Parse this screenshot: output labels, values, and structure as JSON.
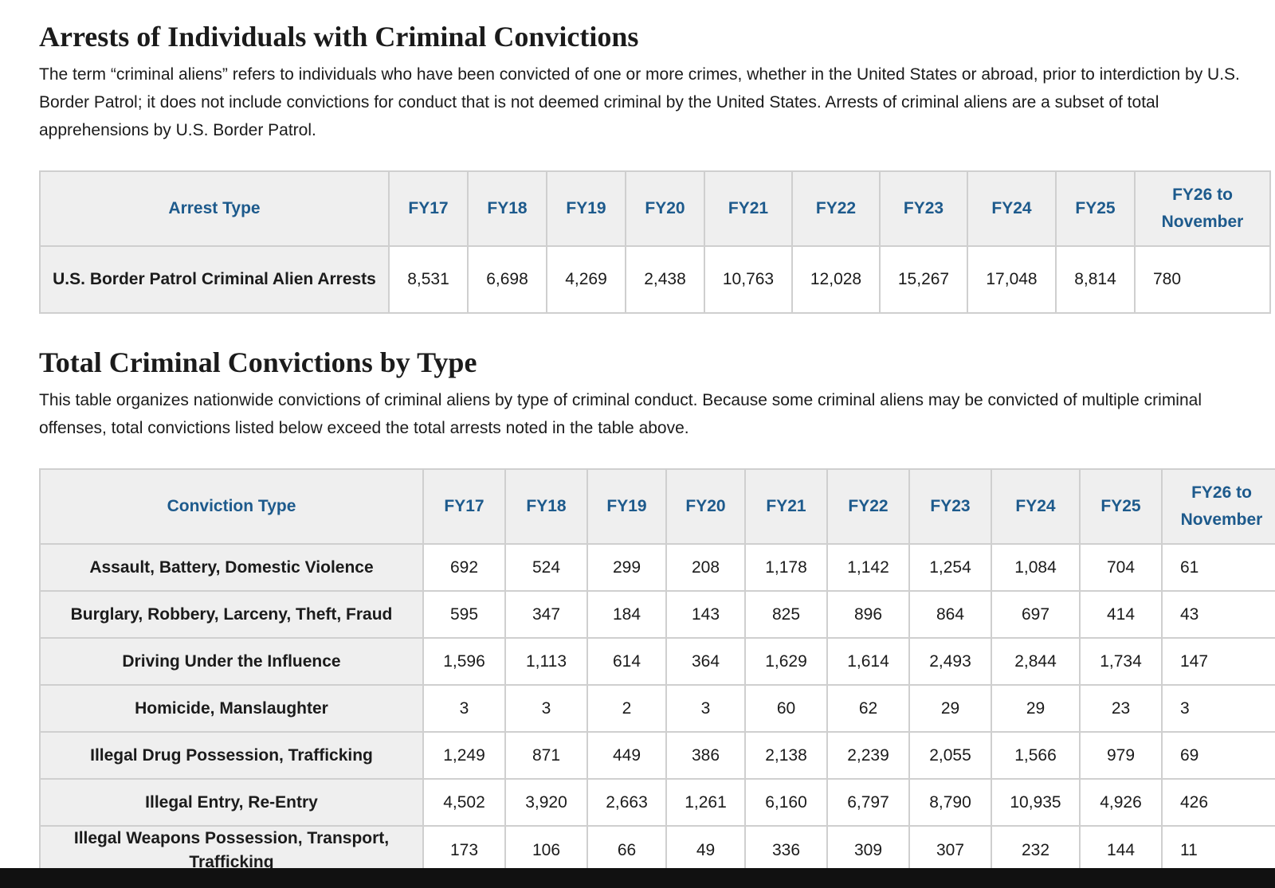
{
  "sections": [
    {
      "title": "Arrests of Individuals with Criminal Convictions",
      "description": "The term “criminal aliens” refers to individuals who have been convicted of one or more crimes, whether in the United States or abroad, prior to interdiction by U.S. Border Patrol; it does not include convictions for conduct that is not deemed criminal by the United States. Arrests of criminal aliens are a subset of total apprehensions by U.S. Border Patrol.",
      "table": {
        "header": [
          "Arrest Type",
          "FY17",
          "FY18",
          "FY19",
          "FY20",
          "FY21",
          "FY22",
          "FY23",
          "FY24",
          "FY25",
          "FY26 to November"
        ],
        "rows": [
          [
            "U.S. Border Patrol Criminal Alien Arrests",
            "8,531",
            "6,698",
            "4,269",
            "2,438",
            "10,763",
            "12,028",
            "15,267",
            "17,048",
            "8,814",
            "780"
          ]
        ]
      }
    },
    {
      "title": "Total Criminal Convictions by Type",
      "description": "This table organizes nationwide convictions of criminal aliens by type of criminal conduct. Because some criminal aliens may be convicted of multiple criminal offenses, total convictions listed below exceed the total arrests noted in the table above.",
      "table": {
        "header": [
          "Conviction Type",
          "FY17",
          "FY18",
          "FY19",
          "FY20",
          "FY21",
          "FY22",
          "FY23",
          "FY24",
          "FY25",
          "FY26 to November"
        ],
        "rows": [
          [
            "Assault, Battery, Domestic Violence",
            "692",
            "524",
            "299",
            "208",
            "1,178",
            "1,142",
            "1,254",
            "1,084",
            "704",
            "61"
          ],
          [
            "Burglary, Robbery, Larceny, Theft, Fraud",
            "595",
            "347",
            "184",
            "143",
            "825",
            "896",
            "864",
            "697",
            "414",
            "43"
          ],
          [
            "Driving Under the Influence",
            "1,596",
            "1,113",
            "614",
            "364",
            "1,629",
            "1,614",
            "2,493",
            "2,844",
            "1,734",
            "147"
          ],
          [
            "Homicide, Manslaughter",
            "3",
            "3",
            "2",
            "3",
            "60",
            "62",
            "29",
            "29",
            "23",
            "3"
          ],
          [
            "Illegal Drug Possession, Trafficking",
            "1,249",
            "871",
            "449",
            "386",
            "2,138",
            "2,239",
            "2,055",
            "1,566",
            "979",
            "69"
          ],
          [
            "Illegal Entry, Re-Entry",
            "4,502",
            "3,920",
            "2,663",
            "1,261",
            "6,160",
            "6,797",
            "8,790",
            "10,935",
            "4,926",
            "426"
          ],
          [
            "Illegal Weapons Possession, Transport, Trafficking",
            "173",
            "106",
            "66",
            "49",
            "336",
            "309",
            "307",
            "232",
            "144",
            "11"
          ]
        ]
      }
    }
  ]
}
